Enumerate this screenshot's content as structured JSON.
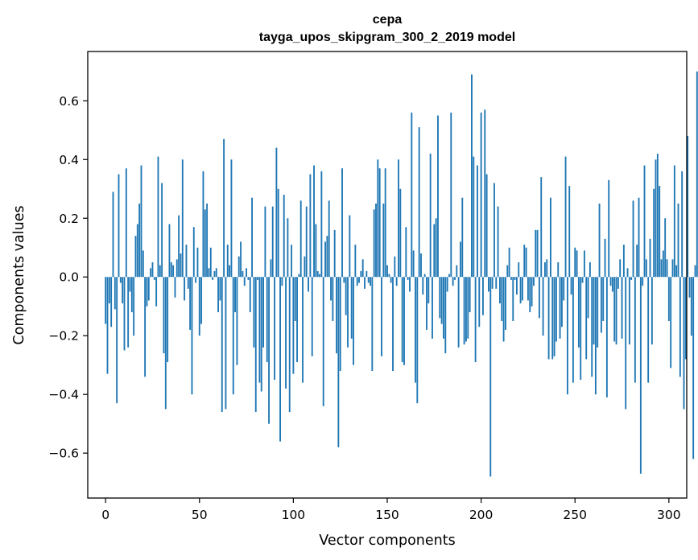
{
  "chart_data": {
    "type": "bar",
    "title": "cepa",
    "subtitle": "tayga_upos_skipgram_300_2_2019 model",
    "xlabel": "Vector components",
    "ylabel": "Components values",
    "xlim": [
      -9.5,
      309.5
    ],
    "ylim": [
      -0.753,
      0.768
    ],
    "xticks": [
      0,
      50,
      100,
      150,
      200,
      250,
      300
    ],
    "xtick_labels": [
      "0",
      "50",
      "100",
      "150",
      "200",
      "250",
      "300"
    ],
    "yticks": [
      -0.6,
      -0.4,
      -0.2,
      0.0,
      0.2,
      0.4,
      0.6
    ],
    "ytick_labels": [
      "−0.6",
      "−0.4",
      "−0.2",
      "0.0",
      "0.2",
      "0.4",
      "0.6"
    ],
    "grid": false,
    "bar_color": "#1f77b4",
    "series": [
      {
        "name": "cepa",
        "values": [
          -0.16,
          -0.33,
          -0.09,
          -0.17,
          0.29,
          -0.11,
          -0.43,
          0.35,
          -0.02,
          -0.09,
          -0.25,
          0.37,
          -0.24,
          -0.05,
          -0.12,
          -0.2,
          0.14,
          0.18,
          0.25,
          0.38,
          0.09,
          -0.34,
          -0.1,
          -0.08,
          0.03,
          0.05,
          -0.01,
          -0.1,
          0.41,
          0.04,
          0.32,
          -0.26,
          -0.45,
          -0.29,
          0.18,
          0.05,
          0.04,
          -0.07,
          0.06,
          0.21,
          0.08,
          0.4,
          -0.08,
          0.11,
          -0.04,
          -0.18,
          -0.4,
          0.17,
          -0.02,
          0.1,
          -0.2,
          -0.16,
          0.36,
          0.23,
          0.25,
          0.03,
          0.1,
          -0.01,
          0.02,
          0.03,
          -0.12,
          -0.08,
          -0.46,
          0.47,
          -0.45,
          0.11,
          0.04,
          0.4,
          -0.4,
          -0.12,
          -0.3,
          0.07,
          0.12,
          0.02,
          -0.03,
          0.03,
          -0.01,
          -0.12,
          0.27,
          -0.24,
          -0.46,
          -0.01,
          -0.36,
          -0.39,
          -0.24,
          0.24,
          -0.29,
          -0.5,
          0.06,
          0.24,
          -0.35,
          0.44,
          0.3,
          -0.56,
          -0.03,
          0.28,
          -0.38,
          0.2,
          -0.46,
          0.11,
          -0.33,
          -0.15,
          -0.29,
          0.01,
          0.26,
          -0.36,
          0.07,
          0.24,
          -0.05,
          0.35,
          -0.27,
          0.38,
          0.18,
          0.02,
          0.01,
          0.36,
          -0.44,
          0.12,
          0.14,
          0.26,
          -0.08,
          -0.15,
          0.16,
          -0.26,
          -0.58,
          -0.32,
          0.37,
          -0.02,
          -0.13,
          -0.24,
          0.21,
          -0.21,
          -0.3,
          0.11,
          -0.03,
          -0.02,
          0.02,
          0.06,
          -0.04,
          0.02,
          -0.02,
          -0.03,
          -0.32,
          0.23,
          0.25,
          0.4,
          0.37,
          -0.27,
          0.25,
          0.37,
          0.04,
          0.01,
          -0.02,
          -0.32,
          0.07,
          -0.03,
          0.4,
          0.3,
          -0.29,
          -0.3,
          0.17,
          -0.01,
          -0.05,
          0.56,
          0.09,
          -0.36,
          -0.43,
          0.51,
          0.08,
          -0.06,
          0.01,
          -0.18,
          -0.09,
          0.42,
          -0.21,
          0.18,
          0.2,
          0.55,
          -0.14,
          -0.16,
          -0.21,
          -0.26,
          -0.05,
          0.01,
          0.56,
          -0.03,
          -0.01,
          0.04,
          -0.24,
          0.12,
          0.27,
          -0.23,
          -0.22,
          -0.21,
          -0.12,
          0.69,
          0.41,
          -0.29,
          0.38,
          -0.17,
          0.56,
          -0.13,
          0.57,
          0.35,
          -0.05,
          -0.68,
          -0.04,
          0.32,
          -0.04,
          0.24,
          -0.09,
          -0.15,
          -0.22,
          -0.18,
          0.04,
          0.1,
          -0.01,
          -0.15,
          -0.01,
          -0.06,
          0.05,
          -0.09,
          -0.08,
          0.11,
          0.1,
          -0.08,
          -0.12,
          -0.1,
          -0.03,
          0.16,
          0.16,
          -0.14,
          0.34,
          -0.2,
          0.05,
          0.06,
          -0.28,
          0.27,
          -0.28,
          -0.27,
          -0.22,
          0.05,
          -0.21,
          -0.17,
          -0.08,
          0.41,
          -0.4,
          0.31,
          -0.06,
          -0.36,
          0.1,
          0.09,
          -0.24,
          -0.35,
          -0.02,
          0.09,
          -0.28,
          -0.14,
          0.05,
          -0.34,
          -0.23,
          -0.4,
          -0.24,
          0.25,
          -0.19,
          -0.15,
          0.13,
          -0.41,
          0.33,
          -0.03,
          -0.05,
          -0.22,
          -0.23,
          -0.04,
          0.06,
          -0.21,
          0.11,
          -0.45,
          0.03,
          -0.23,
          -0.01,
          0.26,
          -0.36,
          0.11,
          0.27,
          -0.67,
          -0.03,
          0.38,
          0.06,
          -0.36,
          0.13,
          -0.23,
          0.3,
          0.4,
          0.42,
          0.31,
          0.06,
          0.09,
          0.2,
          0.06,
          -0.15,
          -0.31,
          0.06,
          0.38,
          0.04,
          0.25,
          -0.34,
          0.36,
          -0.45,
          -0.28,
          0.48,
          -0.07,
          -0.2,
          -0.62,
          0.04,
          0.7,
          0.14,
          -0.24,
          -0.05,
          0.04,
          0.1,
          0.17,
          0.18
        ]
      }
    ]
  }
}
